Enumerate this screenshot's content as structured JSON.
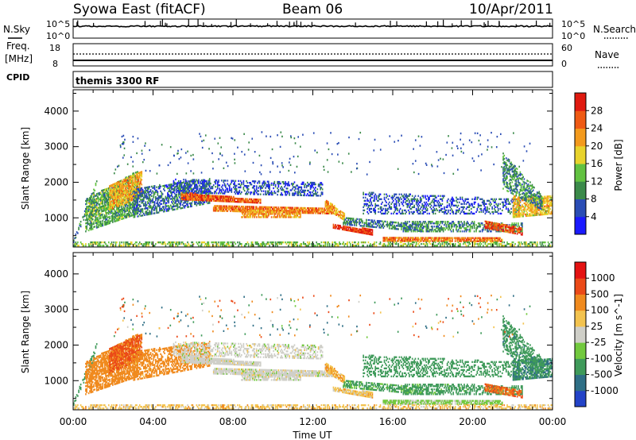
{
  "header": {
    "title": "Syowa East (fitACF)",
    "beam": "Beam 06",
    "date": "10/Apr/2011"
  },
  "noise_panel": {
    "left_label": "N.Sky",
    "right_label": "N.Search",
    "left_ticks": [
      "10^5",
      "10^0"
    ],
    "right_ticks": [
      "10^5",
      "10^0"
    ]
  },
  "freq_panel": {
    "left_label_1": "Freq.",
    "left_label_2": "[MHz]",
    "right_label": "Nave",
    "left_ticks": [
      "18",
      "8"
    ],
    "right_ticks": [
      "60",
      "0"
    ]
  },
  "cpid_panel": {
    "label": "CPID",
    "value": "themis 3300 RF"
  },
  "chart_data": [
    {
      "type": "heatmap",
      "title": "",
      "xlabel": "Time UT",
      "ylabel": "Slant Range [km]",
      "colorbar_label": "Power [dB]",
      "x_ticks": [
        "00:00",
        "04:00",
        "08:00",
        "12:00",
        "16:00",
        "20:00",
        "00:00"
      ],
      "y_ticks": [
        "1000",
        "2000",
        "3000",
        "4000"
      ],
      "ylim": [
        180,
        4600
      ],
      "colorbar_ticks": [
        "4",
        "8",
        "12",
        "16",
        "20",
        "24",
        "28"
      ],
      "colorbar_range": [
        0,
        32
      ],
      "colors": [
        "#1a1aff",
        "#2a4db5",
        "#3b8a4a",
        "#62c241",
        "#e8d32c",
        "#f39a1d",
        "#ef5a14",
        "#e01a10"
      ]
    },
    {
      "type": "heatmap",
      "title": "",
      "xlabel": "Time UT",
      "ylabel": "Slant Range [km]",
      "colorbar_label": "Velocity [m s^-1]",
      "x_ticks": [
        "00:00",
        "04:00",
        "08:00",
        "12:00",
        "16:00",
        "20:00",
        "00:00"
      ],
      "y_ticks": [
        "1000",
        "2000",
        "3000",
        "4000"
      ],
      "ylim": [
        180,
        4600
      ],
      "colorbar_ticks": [
        "1000",
        "500",
        "100",
        "25",
        "-25",
        "-100",
        "-500",
        "-1000"
      ],
      "colors": [
        "#2343c8",
        "#2f6f86",
        "#3f9a5a",
        "#72c93e",
        "#cfcfc8",
        "#f3c34f",
        "#f08a1e",
        "#eb4a18",
        "#e41212"
      ]
    }
  ]
}
